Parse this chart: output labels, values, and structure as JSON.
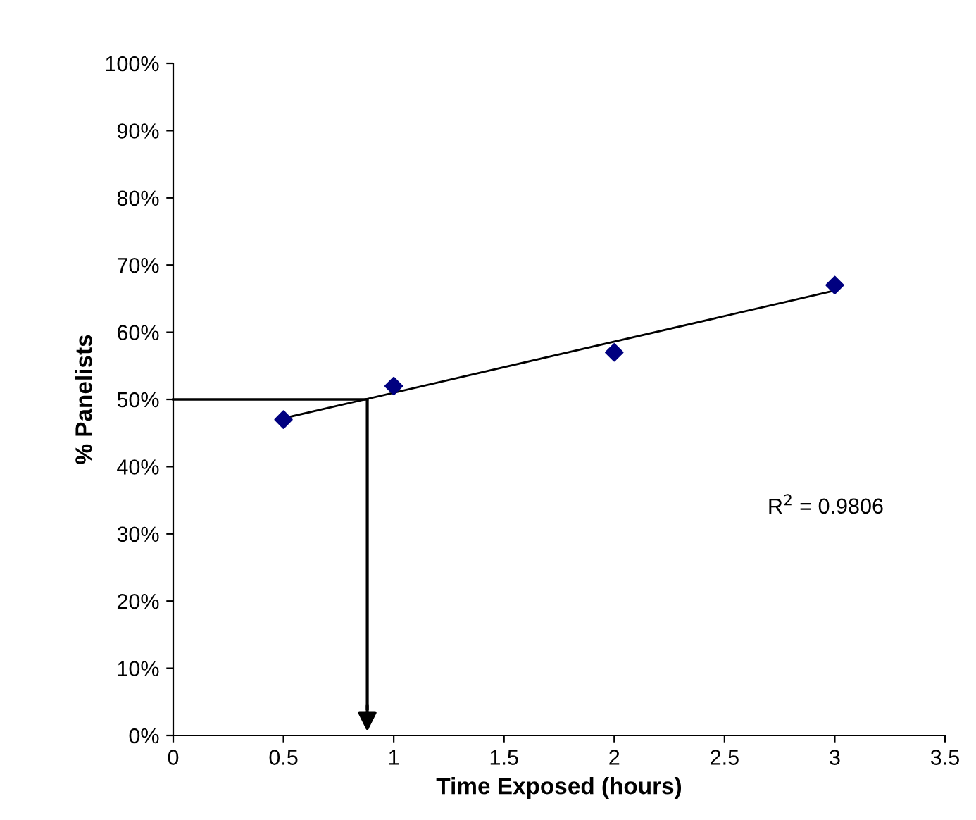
{
  "chart_data": {
    "type": "scatter",
    "xlabel": "Time Exposed (hours)",
    "ylabel": "% Panelists",
    "x": [
      0.5,
      1,
      2,
      3
    ],
    "series": [
      {
        "color": "#000080",
        "values": [
          47,
          52,
          57,
          67
        ],
        "marker": "diamond"
      },
      {
        "type": "line",
        "color": "#000000",
        "x": [
          0.5,
          3
        ],
        "values": [
          47.2,
          66.2
        ],
        "marker": "none"
      }
    ],
    "xlim": [
      0,
      3.5
    ],
    "xticks": [
      0,
      0.5,
      1,
      1.5,
      2,
      2.5,
      3,
      3.5
    ],
    "ylim": [
      0,
      100
    ],
    "yticks": [
      {
        "value": 0,
        "label": "0%"
      },
      {
        "value": 10,
        "label": "10%"
      },
      {
        "value": 20,
        "label": "20%"
      },
      {
        "value": 30,
        "label": "30%"
      },
      {
        "value": 40,
        "label": "40%"
      },
      {
        "value": 50,
        "label": "50%"
      },
      {
        "value": 60,
        "label": "60%"
      },
      {
        "value": 70,
        "label": "70%"
      },
      {
        "value": 80,
        "label": "80%"
      },
      {
        "value": 90,
        "label": "90%"
      },
      {
        "value": 100,
        "label": "100%"
      }
    ],
    "ref_lines": [
      {
        "axis": "y",
        "value": 50,
        "color": "#000000"
      },
      {
        "axis": "x",
        "value": 0.88,
        "color": "#000000"
      }
    ],
    "annotations": [
      "R$^{2}$ = 0.9806"
    ],
    "grid": false,
    "legend": false
  }
}
